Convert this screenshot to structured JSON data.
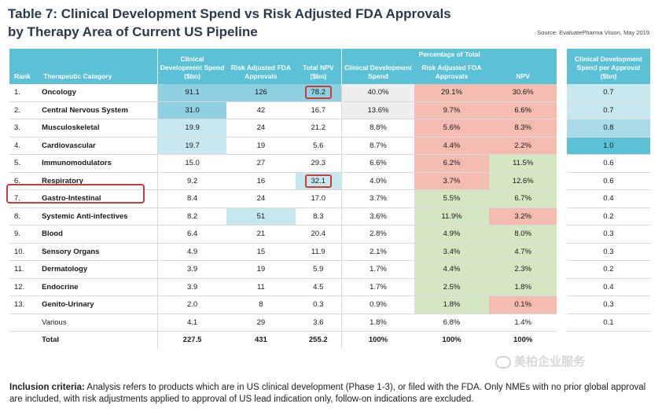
{
  "title_line1": "Table 7: Clinical Development Spend vs Risk Adjusted FDA Approvals",
  "title_line2": "by Therapy Area of Current US Pipeline",
  "source": "Source: EvaluatePharma Vision, May 2019",
  "headers": {
    "rank": "Rank",
    "category": "Therapeutic Category",
    "spend": "Clinical Development Spend ($bn)",
    "approvals": "Risk Adjusted FDA Approvals",
    "npv": "Total NPV ($bn)",
    "pct_group": "Percentage of Total",
    "pct_spend": "Clinical Development Spend",
    "pct_approvals": "Risk Adjusted FDA Approvals",
    "pct_npv": "NPV",
    "per_approval": "Clinical Development Spend per Approval ($bn)"
  },
  "rows": [
    {
      "rank": "1.",
      "cat": "Oncology",
      "spend": "91.1",
      "appr": "126",
      "npv": "78.2",
      "ps": "40.0%",
      "pa": "29.1%",
      "pn": "30.6%",
      "per": "0.7"
    },
    {
      "rank": "2.",
      "cat": "Central Nervous System",
      "spend": "31.0",
      "appr": "42",
      "npv": "16.7",
      "ps": "13.6%",
      "pa": "9.7%",
      "pn": "6.6%",
      "per": "0.7"
    },
    {
      "rank": "3.",
      "cat": "Musculoskeletal",
      "spend": "19.9",
      "appr": "24",
      "npv": "21.2",
      "ps": "8.8%",
      "pa": "5.6%",
      "pn": "8.3%",
      "per": "0.8"
    },
    {
      "rank": "4.",
      "cat": "Cardiovascular",
      "spend": "19.7",
      "appr": "19",
      "npv": "5.6",
      "ps": "8.7%",
      "pa": "4.4%",
      "pn": "2.2%",
      "per": "1.0"
    },
    {
      "rank": "5.",
      "cat": "Immunomodulators",
      "spend": "15.0",
      "appr": "27",
      "npv": "29.3",
      "ps": "6.6%",
      "pa": "6.2%",
      "pn": "11.5%",
      "per": "0.6"
    },
    {
      "rank": "6.",
      "cat": "Respiratory",
      "spend": "9.2",
      "appr": "16",
      "npv": "32.1",
      "ps": "4.0%",
      "pa": "3.7%",
      "pn": "12.6%",
      "per": "0.6"
    },
    {
      "rank": "7.",
      "cat": "Gastro-Intestinal",
      "spend": "8.4",
      "appr": "24",
      "npv": "17.0",
      "ps": "3.7%",
      "pa": "5.5%",
      "pn": "6.7%",
      "per": "0.4"
    },
    {
      "rank": "8.",
      "cat": "Systemic Anti-infectives",
      "spend": "8.2",
      "appr": "51",
      "npv": "8.3",
      "ps": "3.6%",
      "pa": "11.9%",
      "pn": "3.2%",
      "per": "0.2"
    },
    {
      "rank": "9.",
      "cat": "Blood",
      "spend": "6.4",
      "appr": "21",
      "npv": "20.4",
      "ps": "2.8%",
      "pa": "4.9%",
      "pn": "8.0%",
      "per": "0.3"
    },
    {
      "rank": "10.",
      "cat": "Sensory Organs",
      "spend": "4.9",
      "appr": "15",
      "npv": "11.9",
      "ps": "2.1%",
      "pa": "3.4%",
      "pn": "4.7%",
      "per": "0.3"
    },
    {
      "rank": "11.",
      "cat": "Dermatology",
      "spend": "3.9",
      "appr": "19",
      "npv": "5.9",
      "ps": "1.7%",
      "pa": "4.4%",
      "pn": "2.3%",
      "per": "0.2"
    },
    {
      "rank": "12.",
      "cat": "Endocrine",
      "spend": "3.9",
      "appr": "11",
      "npv": "4.5",
      "ps": "1.7%",
      "pa": "2.5%",
      "pn": "1.8%",
      "per": "0.4"
    },
    {
      "rank": "13.",
      "cat": "Genito-Urinary",
      "spend": "2.0",
      "appr": "8",
      "npv": "0.3",
      "ps": "0.9%",
      "pa": "1.8%",
      "pn": "0.1%",
      "per": "0.3"
    },
    {
      "rank": "",
      "cat": "Various",
      "spend": "4.1",
      "appr": "29",
      "npv": "3.6",
      "ps": "1.8%",
      "pa": "6.8%",
      "pn": "1.4%",
      "per": "0.1"
    }
  ],
  "total": {
    "label": "Total",
    "spend": "227.5",
    "appr": "431",
    "npv": "255.2",
    "ps": "100%",
    "pa": "100%",
    "pn": "100%"
  },
  "footer_label": "Inclusion criteria:",
  "footer_text": " Analysis refers to products which are in US clinical development (Phase 1-3), or filed with the FDA. Only NMEs with no prior global approval are included, with risk adjustments applied to approval of US lead indication only, follow-on indications are excluded.",
  "watermark": "美柏企业服务",
  "colors": {
    "header": "#5bc1d6",
    "red_box": "#c83c3c",
    "blue_hi": "#8fd0e0",
    "blue_mid": "#c8e8f0",
    "pink": "#f4bcb0",
    "green": "#d4e6c2"
  }
}
